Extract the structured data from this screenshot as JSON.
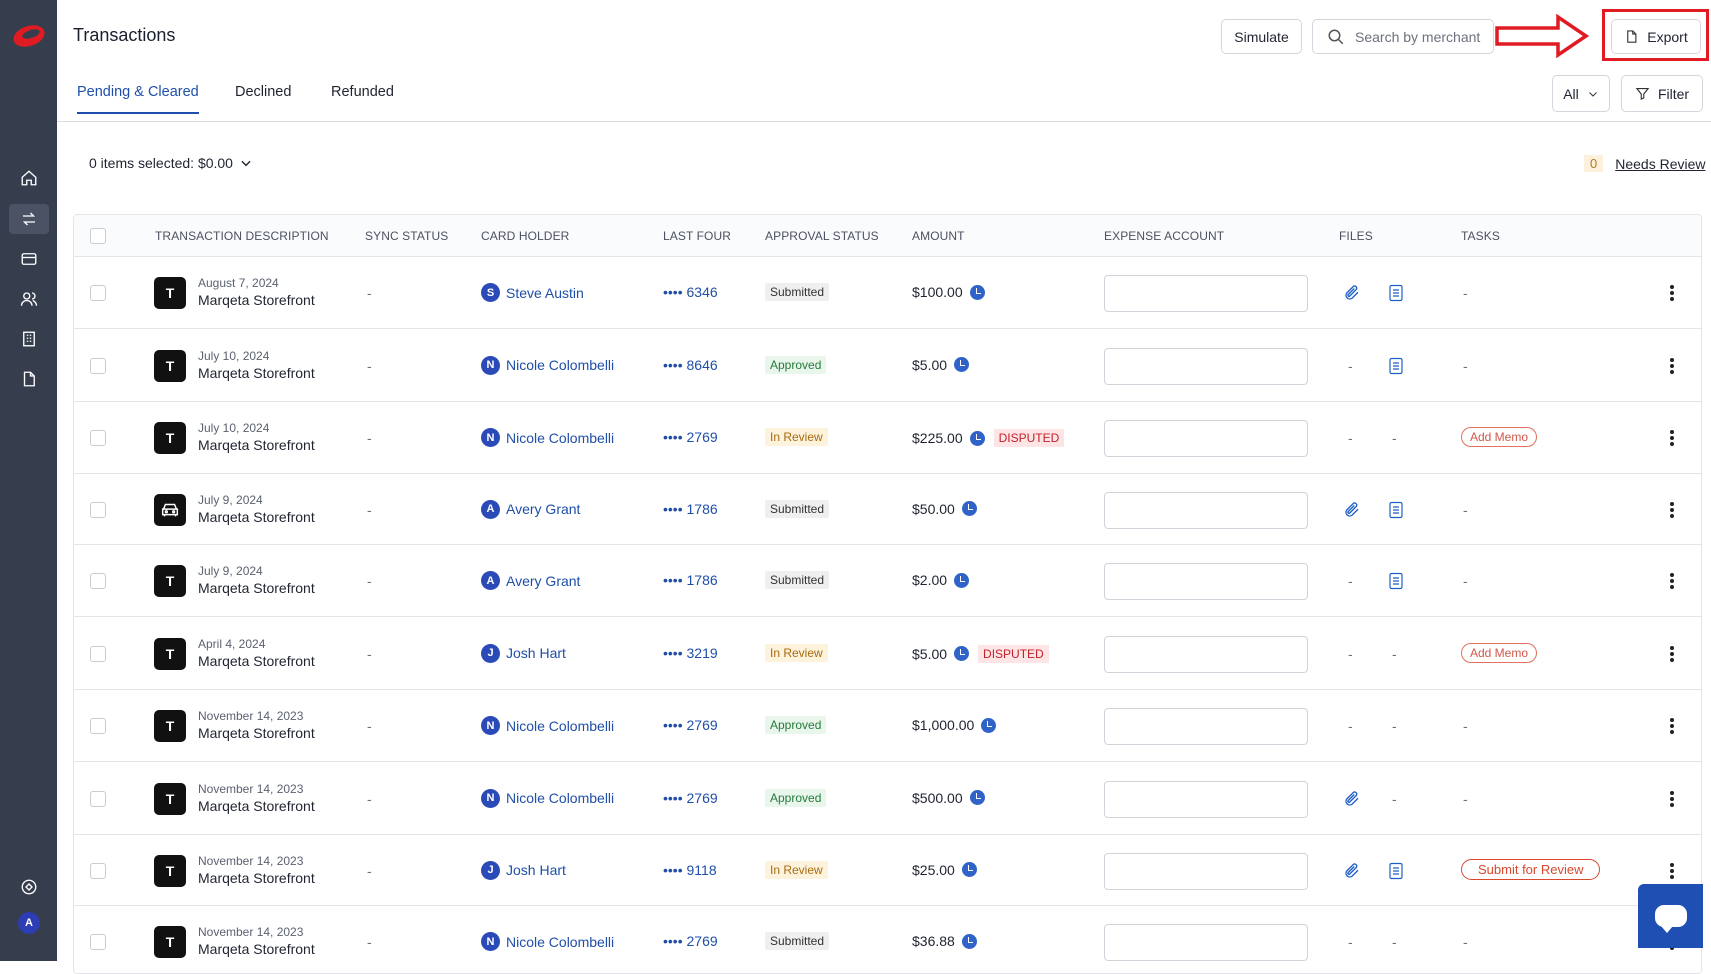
{
  "header": {
    "title": "Transactions",
    "simulate_label": "Simulate",
    "search_placeholder": "Search by merchant",
    "export_label": "Export"
  },
  "tabs": [
    "Pending & Cleared",
    "Declined",
    "Refunded"
  ],
  "toolbar": {
    "all_label": "All",
    "filter_label": "Filter"
  },
  "selection": {
    "text": "0 items selected: $0.00"
  },
  "needs_review": {
    "count": "0",
    "label": "Needs Review"
  },
  "sidebar": {
    "icons": [
      "home-icon",
      "transfer-icon",
      "card-icon",
      "users-icon",
      "building-icon",
      "document-icon",
      "help-icon"
    ],
    "avatar": "A"
  },
  "columns": [
    "TRANSACTION DESCRIPTION",
    "SYNC STATUS",
    "CARD HOLDER",
    "LAST FOUR",
    "APPROVAL STATUS",
    "AMOUNT",
    "EXPENSE ACCOUNT",
    "FILES",
    "TASKS"
  ],
  "rows": [
    {
      "icon": "T",
      "date": "August 7, 2024",
      "merchant": "Marqeta Storefront",
      "sync": "-",
      "holder_initial": "S",
      "holder": "Steve Austin",
      "last4": "•••• 6346",
      "status": "Submitted",
      "status_type": "submitted",
      "amount": "$100.00",
      "disputed": "",
      "attach": true,
      "doc": true,
      "task": "-",
      "task_type": "dash"
    },
    {
      "icon": "T",
      "date": "July 10, 2024",
      "merchant": "Marqeta Storefront",
      "sync": "-",
      "holder_initial": "N",
      "holder": "Nicole Colombelli",
      "last4": "•••• 8646",
      "status": "Approved",
      "status_type": "approved",
      "amount": "$5.00",
      "disputed": "",
      "attach": false,
      "doc": true,
      "task": "-",
      "task_type": "dash"
    },
    {
      "icon": "T",
      "date": "July 10, 2024",
      "merchant": "Marqeta Storefront",
      "sync": "-",
      "holder_initial": "N",
      "holder": "Nicole Colombelli",
      "last4": "•••• 2769",
      "status": "In Review",
      "status_type": "review",
      "amount": "$225.00",
      "disputed": "DISPUTED",
      "attach": false,
      "doc": false,
      "task": "Add Memo",
      "task_type": "memo"
    },
    {
      "icon": "car",
      "date": "July 9, 2024",
      "merchant": "Marqeta Storefront",
      "sync": "-",
      "holder_initial": "A",
      "holder": "Avery Grant",
      "last4": "•••• 1786",
      "status": "Submitted",
      "status_type": "submitted",
      "amount": "$50.00",
      "disputed": "",
      "attach": true,
      "doc": true,
      "task": "-",
      "task_type": "dash"
    },
    {
      "icon": "T",
      "date": "July 9, 2024",
      "merchant": "Marqeta Storefront",
      "sync": "-",
      "holder_initial": "A",
      "holder": "Avery Grant",
      "last4": "•••• 1786",
      "status": "Submitted",
      "status_type": "submitted",
      "amount": "$2.00",
      "disputed": "",
      "attach": false,
      "doc": true,
      "task": "-",
      "task_type": "dash"
    },
    {
      "icon": "T",
      "date": "April 4, 2024",
      "merchant": "Marqeta Storefront",
      "sync": "-",
      "holder_initial": "J",
      "holder": "Josh Hart",
      "last4": "•••• 3219",
      "status": "In Review",
      "status_type": "review",
      "amount": "$5.00",
      "disputed": "DISPUTED",
      "attach": false,
      "doc": false,
      "task": "Add Memo",
      "task_type": "memo"
    },
    {
      "icon": "T",
      "date": "November 14, 2023",
      "merchant": "Marqeta Storefront",
      "sync": "-",
      "holder_initial": "N",
      "holder": "Nicole Colombelli",
      "last4": "•••• 2769",
      "status": "Approved",
      "status_type": "approved",
      "amount": "$1,000.00",
      "disputed": "",
      "attach": false,
      "doc": false,
      "task": "-",
      "task_type": "dash"
    },
    {
      "icon": "T",
      "date": "November 14, 2023",
      "merchant": "Marqeta Storefront",
      "sync": "-",
      "holder_initial": "N",
      "holder": "Nicole Colombelli",
      "last4": "•••• 2769",
      "status": "Approved",
      "status_type": "approved",
      "amount": "$500.00",
      "disputed": "",
      "attach": true,
      "doc": false,
      "task": "-",
      "task_type": "dash"
    },
    {
      "icon": "T",
      "date": "November 14, 2023",
      "merchant": "Marqeta Storefront",
      "sync": "-",
      "holder_initial": "J",
      "holder": "Josh Hart",
      "last4": "•••• 9118",
      "status": "In Review",
      "status_type": "review",
      "amount": "$25.00",
      "disputed": "",
      "attach": true,
      "doc": true,
      "task": "Submit for Review",
      "task_type": "review"
    },
    {
      "icon": "T",
      "date": "November 14, 2023",
      "merchant": "Marqeta Storefront",
      "sync": "-",
      "holder_initial": "N",
      "holder": "Nicole Colombelli",
      "last4": "•••• 2769",
      "status": "Submitted",
      "status_type": "submitted",
      "amount": "$36.88",
      "disputed": "",
      "attach": false,
      "doc": false,
      "task": "-",
      "task_type": "dash"
    }
  ],
  "colors": {
    "sidebar": "#363d4d",
    "brand_red": "#e01b24",
    "link_blue": "#1f4fa8",
    "chat_button": "#1f4fb3"
  }
}
